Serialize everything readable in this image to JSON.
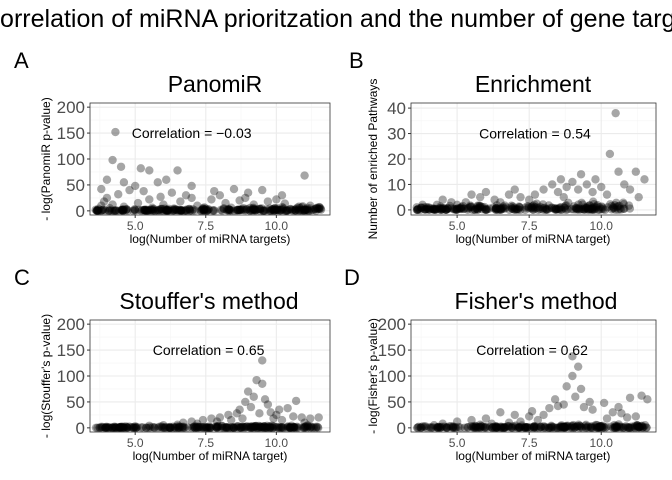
{
  "figure": {
    "title": "Correlation of miRNA prioritzation and the number of gene targets"
  },
  "colors": {
    "point": "#000000",
    "grid_major": "#ebebeb",
    "grid_minor": "#f5f5f5",
    "panel_border": "#333333",
    "tick_text": "#4d4d4d"
  },
  "chart_data": [
    {
      "letter": "A",
      "type": "scatter",
      "title": "PanomiR",
      "xlabel": "log(Number of miRNA targets)",
      "ylabel": "- log(PanomiR p-value)",
      "xlim": [
        3.4,
        11.9
      ],
      "ylim": [
        -8,
        208
      ],
      "xticks": [
        5.0,
        7.5,
        10.0
      ],
      "xtick_labels": [
        "5.0",
        "7.5",
        "10.0"
      ],
      "yticks": [
        0,
        50,
        100,
        150,
        200
      ],
      "ytick_labels": [
        "0",
        "50",
        "100",
        "150",
        "200"
      ],
      "annotation": "Correlation = −0.03",
      "annotation_at": [
        7.0,
        150
      ],
      "grid": true,
      "legend": "none",
      "points": [
        [
          4.3,
          152
        ],
        [
          4.2,
          98
        ],
        [
          4.5,
          85
        ],
        [
          5.2,
          82
        ],
        [
          5.5,
          78
        ],
        [
          6.5,
          78
        ],
        [
          4.0,
          60
        ],
        [
          3.8,
          42
        ],
        [
          4.6,
          55
        ],
        [
          5.8,
          55
        ],
        [
          6.1,
          60
        ],
        [
          5.0,
          48
        ],
        [
          7.0,
          48
        ],
        [
          8.5,
          42
        ],
        [
          9.5,
          40
        ],
        [
          11.0,
          68
        ],
        [
          10.2,
          30
        ],
        [
          9.0,
          35
        ],
        [
          7.8,
          38
        ],
        [
          6.8,
          30
        ],
        [
          5.3,
          38
        ],
        [
          4.8,
          40
        ],
        [
          4.4,
          32
        ],
        [
          6.3,
          35
        ],
        [
          8.0,
          30
        ],
        [
          4.0,
          25
        ],
        [
          3.9,
          18
        ],
        [
          4.2,
          12
        ],
        [
          4.6,
          8
        ],
        [
          5.1,
          15
        ],
        [
          5.5,
          22
        ],
        [
          6.0,
          12
        ],
        [
          6.6,
          18
        ],
        [
          7.2,
          10
        ],
        [
          7.7,
          22
        ],
        [
          8.2,
          15
        ],
        [
          8.7,
          20
        ],
        [
          9.2,
          12
        ],
        [
          9.7,
          18
        ],
        [
          10.3,
          14
        ],
        [
          10.8,
          8
        ],
        [
          11.2,
          10
        ],
        [
          11.5,
          4
        ],
        [
          3.7,
          4
        ],
        [
          3.6,
          2
        ],
        [
          4.1,
          5
        ],
        [
          4.7,
          3
        ],
        [
          5.6,
          6
        ],
        [
          6.4,
          4
        ],
        [
          7.4,
          5
        ],
        [
          8.4,
          6
        ],
        [
          9.4,
          4
        ],
        [
          10.5,
          3
        ],
        [
          11.0,
          2
        ],
        [
          3.8,
          10
        ],
        [
          5.9,
          27
        ],
        [
          7.0,
          25
        ],
        [
          8.9,
          25
        ],
        [
          10.0,
          22
        ]
      ],
      "band": {
        "x": [
          3.6,
          11.6
        ],
        "y": [
          0,
          10
        ],
        "n": 260
      }
    },
    {
      "letter": "B",
      "type": "scatter",
      "title": "Enrichment",
      "xlabel": "log(Number of miRNA target)",
      "ylabel": "Number of enriched Pathways",
      "xlim": [
        3.4,
        11.9
      ],
      "ylim": [
        -2,
        42
      ],
      "xticks": [
        5.0,
        7.5,
        10.0
      ],
      "xtick_labels": [
        "5.0",
        "7.5",
        "10.0"
      ],
      "yticks": [
        0,
        10,
        20,
        30,
        40
      ],
      "ytick_labels": [
        "0",
        "10",
        "20",
        "30",
        "40"
      ],
      "annotation": "Correlation = 0.54",
      "annotation_at": [
        7.7,
        30
      ],
      "grid": true,
      "legend": "none",
      "points": [
        [
          10.5,
          38
        ],
        [
          10.3,
          22
        ],
        [
          11.5,
          12
        ],
        [
          11.3,
          5
        ],
        [
          10.8,
          10
        ],
        [
          9.8,
          12
        ],
        [
          9.5,
          10
        ],
        [
          9.2,
          8
        ],
        [
          8.8,
          9
        ],
        [
          8.5,
          7
        ],
        [
          8.0,
          8
        ],
        [
          7.7,
          6
        ],
        [
          7.2,
          5
        ],
        [
          6.8,
          6
        ],
        [
          6.3,
          4
        ],
        [
          5.8,
          5
        ],
        [
          5.3,
          3
        ],
        [
          4.8,
          3
        ],
        [
          4.3,
          2
        ],
        [
          3.8,
          2
        ],
        [
          3.6,
          1
        ],
        [
          10.0,
          9
        ],
        [
          9.0,
          11
        ],
        [
          8.3,
          10
        ],
        [
          7.0,
          8
        ],
        [
          6.0,
          7
        ],
        [
          5.5,
          6
        ],
        [
          4.5,
          4
        ],
        [
          11.0,
          8
        ],
        [
          10.2,
          6
        ],
        [
          9.7,
          7
        ],
        [
          8.7,
          5
        ],
        [
          7.5,
          4
        ],
        [
          6.5,
          3
        ],
        [
          5.0,
          2
        ],
        [
          4.0,
          1
        ],
        [
          9.3,
          14
        ],
        [
          10.6,
          15
        ],
        [
          11.2,
          15
        ],
        [
          8.6,
          12
        ]
      ],
      "band": {
        "x": [
          3.6,
          11.0
        ],
        "y": [
          0,
          4
        ],
        "n": 260
      }
    },
    {
      "letter": "C",
      "type": "scatter",
      "title": "Stouffer's method",
      "xlabel": "log(Number of miRNA target)",
      "ylabel": "- log(Stouffer's p-value)",
      "xlim": [
        3.4,
        11.9
      ],
      "ylim": [
        -8,
        208
      ],
      "xticks": [
        5.0,
        7.5,
        10.0
      ],
      "xtick_labels": [
        "5.0",
        "7.5",
        "10.0"
      ],
      "yticks": [
        0,
        50,
        100,
        150,
        200
      ],
      "ytick_labels": [
        "0",
        "50",
        "100",
        "150",
        "200"
      ],
      "annotation": "Correlation = 0.65",
      "annotation_at": [
        7.6,
        150
      ],
      "grid": true,
      "legend": "none",
      "points": [
        [
          9.5,
          130
        ],
        [
          9.3,
          92
        ],
        [
          9.5,
          85
        ],
        [
          9.0,
          70
        ],
        [
          9.2,
          60
        ],
        [
          8.9,
          50
        ],
        [
          9.7,
          45
        ],
        [
          10.7,
          52
        ],
        [
          10.4,
          38
        ],
        [
          10.1,
          35
        ],
        [
          9.8,
          30
        ],
        [
          8.6,
          28
        ],
        [
          8.3,
          25
        ],
        [
          8.0,
          20
        ],
        [
          7.7,
          18
        ],
        [
          7.4,
          15
        ],
        [
          7.0,
          12
        ],
        [
          6.7,
          10
        ],
        [
          10.9,
          20
        ],
        [
          11.2,
          18
        ],
        [
          11.5,
          20
        ],
        [
          10.6,
          22
        ],
        [
          9.1,
          40
        ],
        [
          8.7,
          35
        ],
        [
          9.4,
          28
        ],
        [
          10.0,
          25
        ],
        [
          8.4,
          15
        ],
        [
          7.9,
          12
        ],
        [
          7.2,
          8
        ],
        [
          6.5,
          6
        ],
        [
          6.0,
          5
        ],
        [
          5.5,
          4
        ],
        [
          5.0,
          3
        ],
        [
          4.5,
          2
        ],
        [
          9.6,
          55
        ],
        [
          10.2,
          15
        ],
        [
          11.0,
          10
        ],
        [
          8.8,
          18
        ],
        [
          9.9,
          18
        ]
      ],
      "band": {
        "x": [
          3.6,
          11.5
        ],
        "y": [
          0,
          6
        ],
        "n": 260
      }
    },
    {
      "letter": "D",
      "type": "scatter",
      "title": "Fisher's method",
      "xlabel": "log(Number of miRNA target)",
      "ylabel": "- log(Fisher's p-value)",
      "xlim": [
        3.4,
        11.9
      ],
      "ylim": [
        -8,
        208
      ],
      "xticks": [
        5.0,
        7.5,
        10.0
      ],
      "xtick_labels": [
        "5.0",
        "7.5",
        "10.0"
      ],
      "yticks": [
        0,
        50,
        100,
        150,
        200
      ],
      "ytick_labels": [
        "0",
        "50",
        "100",
        "150",
        "200"
      ],
      "annotation": "Correlation = 0.62",
      "annotation_at": [
        7.6,
        150
      ],
      "grid": true,
      "legend": "none",
      "points": [
        [
          9.0,
          138
        ],
        [
          9.2,
          118
        ],
        [
          9.0,
          100
        ],
        [
          8.8,
          80
        ],
        [
          9.3,
          75
        ],
        [
          11.4,
          62
        ],
        [
          11.0,
          58
        ],
        [
          11.6,
          55
        ],
        [
          9.6,
          50
        ],
        [
          10.1,
          48
        ],
        [
          8.5,
          42
        ],
        [
          8.2,
          38
        ],
        [
          9.7,
          35
        ],
        [
          10.4,
          30
        ],
        [
          10.7,
          28
        ],
        [
          6.5,
          30
        ],
        [
          7.0,
          25
        ],
        [
          7.5,
          22
        ],
        [
          8.0,
          25
        ],
        [
          6.0,
          18
        ],
        [
          5.5,
          15
        ],
        [
          5.0,
          12
        ],
        [
          4.5,
          8
        ],
        [
          9.4,
          40
        ],
        [
          8.7,
          45
        ],
        [
          10.9,
          20
        ],
        [
          11.2,
          22
        ],
        [
          10.2,
          18
        ],
        [
          7.8,
          15
        ],
        [
          7.2,
          12
        ],
        [
          6.8,
          10
        ],
        [
          6.2,
          8
        ],
        [
          5.8,
          6
        ],
        [
          8.4,
          55
        ],
        [
          9.1,
          60
        ],
        [
          7.6,
          32
        ],
        [
          10.6,
          40
        ],
        [
          4.2,
          5
        ],
        [
          3.9,
          3
        ]
      ],
      "band": {
        "x": [
          3.6,
          11.6
        ],
        "y": [
          0,
          8
        ],
        "n": 260
      }
    }
  ]
}
